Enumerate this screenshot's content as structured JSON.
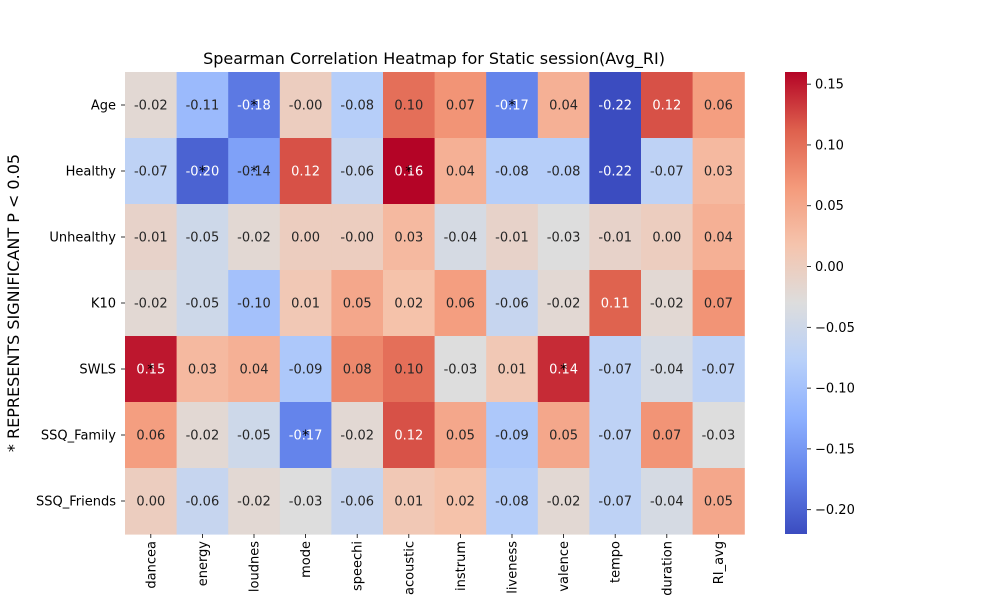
{
  "chart_data": {
    "type": "heatmap",
    "title": "Spearman Correlation Heatmap for Static session(Avg_RI)",
    "ylabel": "* REPRESENTS SIGNIFICANT P < 0.05",
    "xlabel": "",
    "columns": [
      "dancea",
      "energy",
      "loudnes",
      "mode",
      "speechi",
      "acoustic",
      "instrum",
      "liveness",
      "valence",
      "tempo",
      "duration",
      "RI_avg"
    ],
    "rows": [
      "Age",
      "Healthy",
      "Unhealthy",
      "K10",
      "SWLS",
      "SSQ_Family",
      "SSQ_Friends"
    ],
    "values": [
      [
        -0.02,
        -0.11,
        -0.18,
        -0.0,
        -0.08,
        0.1,
        0.07,
        -0.17,
        0.04,
        -0.22,
        0.12,
        0.06
      ],
      [
        -0.07,
        -0.2,
        -0.14,
        0.12,
        -0.06,
        0.16,
        0.04,
        -0.08,
        -0.08,
        -0.22,
        -0.07,
        0.03
      ],
      [
        -0.01,
        -0.05,
        -0.02,
        0.0,
        -0.0,
        0.03,
        -0.04,
        -0.01,
        -0.03,
        -0.01,
        0.0,
        0.04
      ],
      [
        -0.02,
        -0.05,
        -0.1,
        0.01,
        0.05,
        0.02,
        0.06,
        -0.06,
        -0.02,
        0.11,
        -0.02,
        0.07
      ],
      [
        0.15,
        0.03,
        0.04,
        -0.09,
        0.08,
        0.1,
        -0.03,
        0.01,
        0.14,
        -0.07,
        -0.04,
        -0.07
      ],
      [
        0.06,
        -0.02,
        -0.05,
        -0.17,
        -0.02,
        0.12,
        0.05,
        -0.09,
        0.05,
        -0.07,
        0.07,
        -0.03
      ],
      [
        0.0,
        -0.06,
        -0.02,
        -0.03,
        -0.06,
        0.01,
        0.02,
        -0.08,
        -0.02,
        -0.07,
        -0.04,
        0.05
      ]
    ],
    "labels": [
      [
        "-0.02",
        "-0.11",
        "-0.18",
        "-0.00",
        "-0.08",
        "0.10",
        "0.07",
        "-0.17",
        "0.04",
        "-0.22",
        "0.12",
        "0.06"
      ],
      [
        "-0.07",
        "-0.20",
        "-0.14",
        "0.12",
        "-0.06",
        "0.16",
        "0.04",
        "-0.08",
        "-0.08",
        "-0.22",
        "-0.07",
        "0.03"
      ],
      [
        "-0.01",
        "-0.05",
        "-0.02",
        "0.00",
        "-0.00",
        "0.03",
        "-0.04",
        "-0.01",
        "-0.03",
        "-0.01",
        "0.00",
        "0.04"
      ],
      [
        "-0.02",
        "-0.05",
        "-0.10",
        "0.01",
        "0.05",
        "0.02",
        "0.06",
        "-0.06",
        "-0.02",
        "0.11",
        "-0.02",
        "0.07"
      ],
      [
        "0.15",
        "0.03",
        "0.04",
        "-0.09",
        "0.08",
        "0.10",
        "-0.03",
        "0.01",
        "0.14",
        "-0.07",
        "-0.04",
        "-0.07"
      ],
      [
        "0.06",
        "-0.02",
        "-0.05",
        "-0.17",
        "-0.02",
        "0.12",
        "0.05",
        "-0.09",
        "0.05",
        "-0.07",
        "0.07",
        "-0.03"
      ],
      [
        "0.00",
        "-0.06",
        "-0.02",
        "-0.03",
        "-0.06",
        "0.01",
        "0.02",
        "-0.08",
        "-0.02",
        "-0.07",
        "-0.04",
        "0.05"
      ]
    ],
    "significant_marker": "*",
    "significant": [
      [
        0,
        2
      ],
      [
        0,
        7
      ],
      [
        1,
        1
      ],
      [
        1,
        2
      ],
      [
        1,
        5
      ],
      [
        4,
        0
      ],
      [
        4,
        8
      ],
      [
        5,
        3
      ]
    ],
    "colormap": "coolwarm",
    "colorbar": {
      "vmin": -0.22,
      "vmax": 0.16,
      "ticks": [
        -0.2,
        -0.15,
        -0.1,
        -0.05,
        0.0,
        0.05,
        0.1,
        0.15
      ],
      "tick_labels": [
        "−0.20",
        "−0.15",
        "−0.10",
        "−0.05",
        "0.00",
        "0.05",
        "0.10",
        "0.15"
      ],
      "placement": "right"
    },
    "grid": false
  }
}
